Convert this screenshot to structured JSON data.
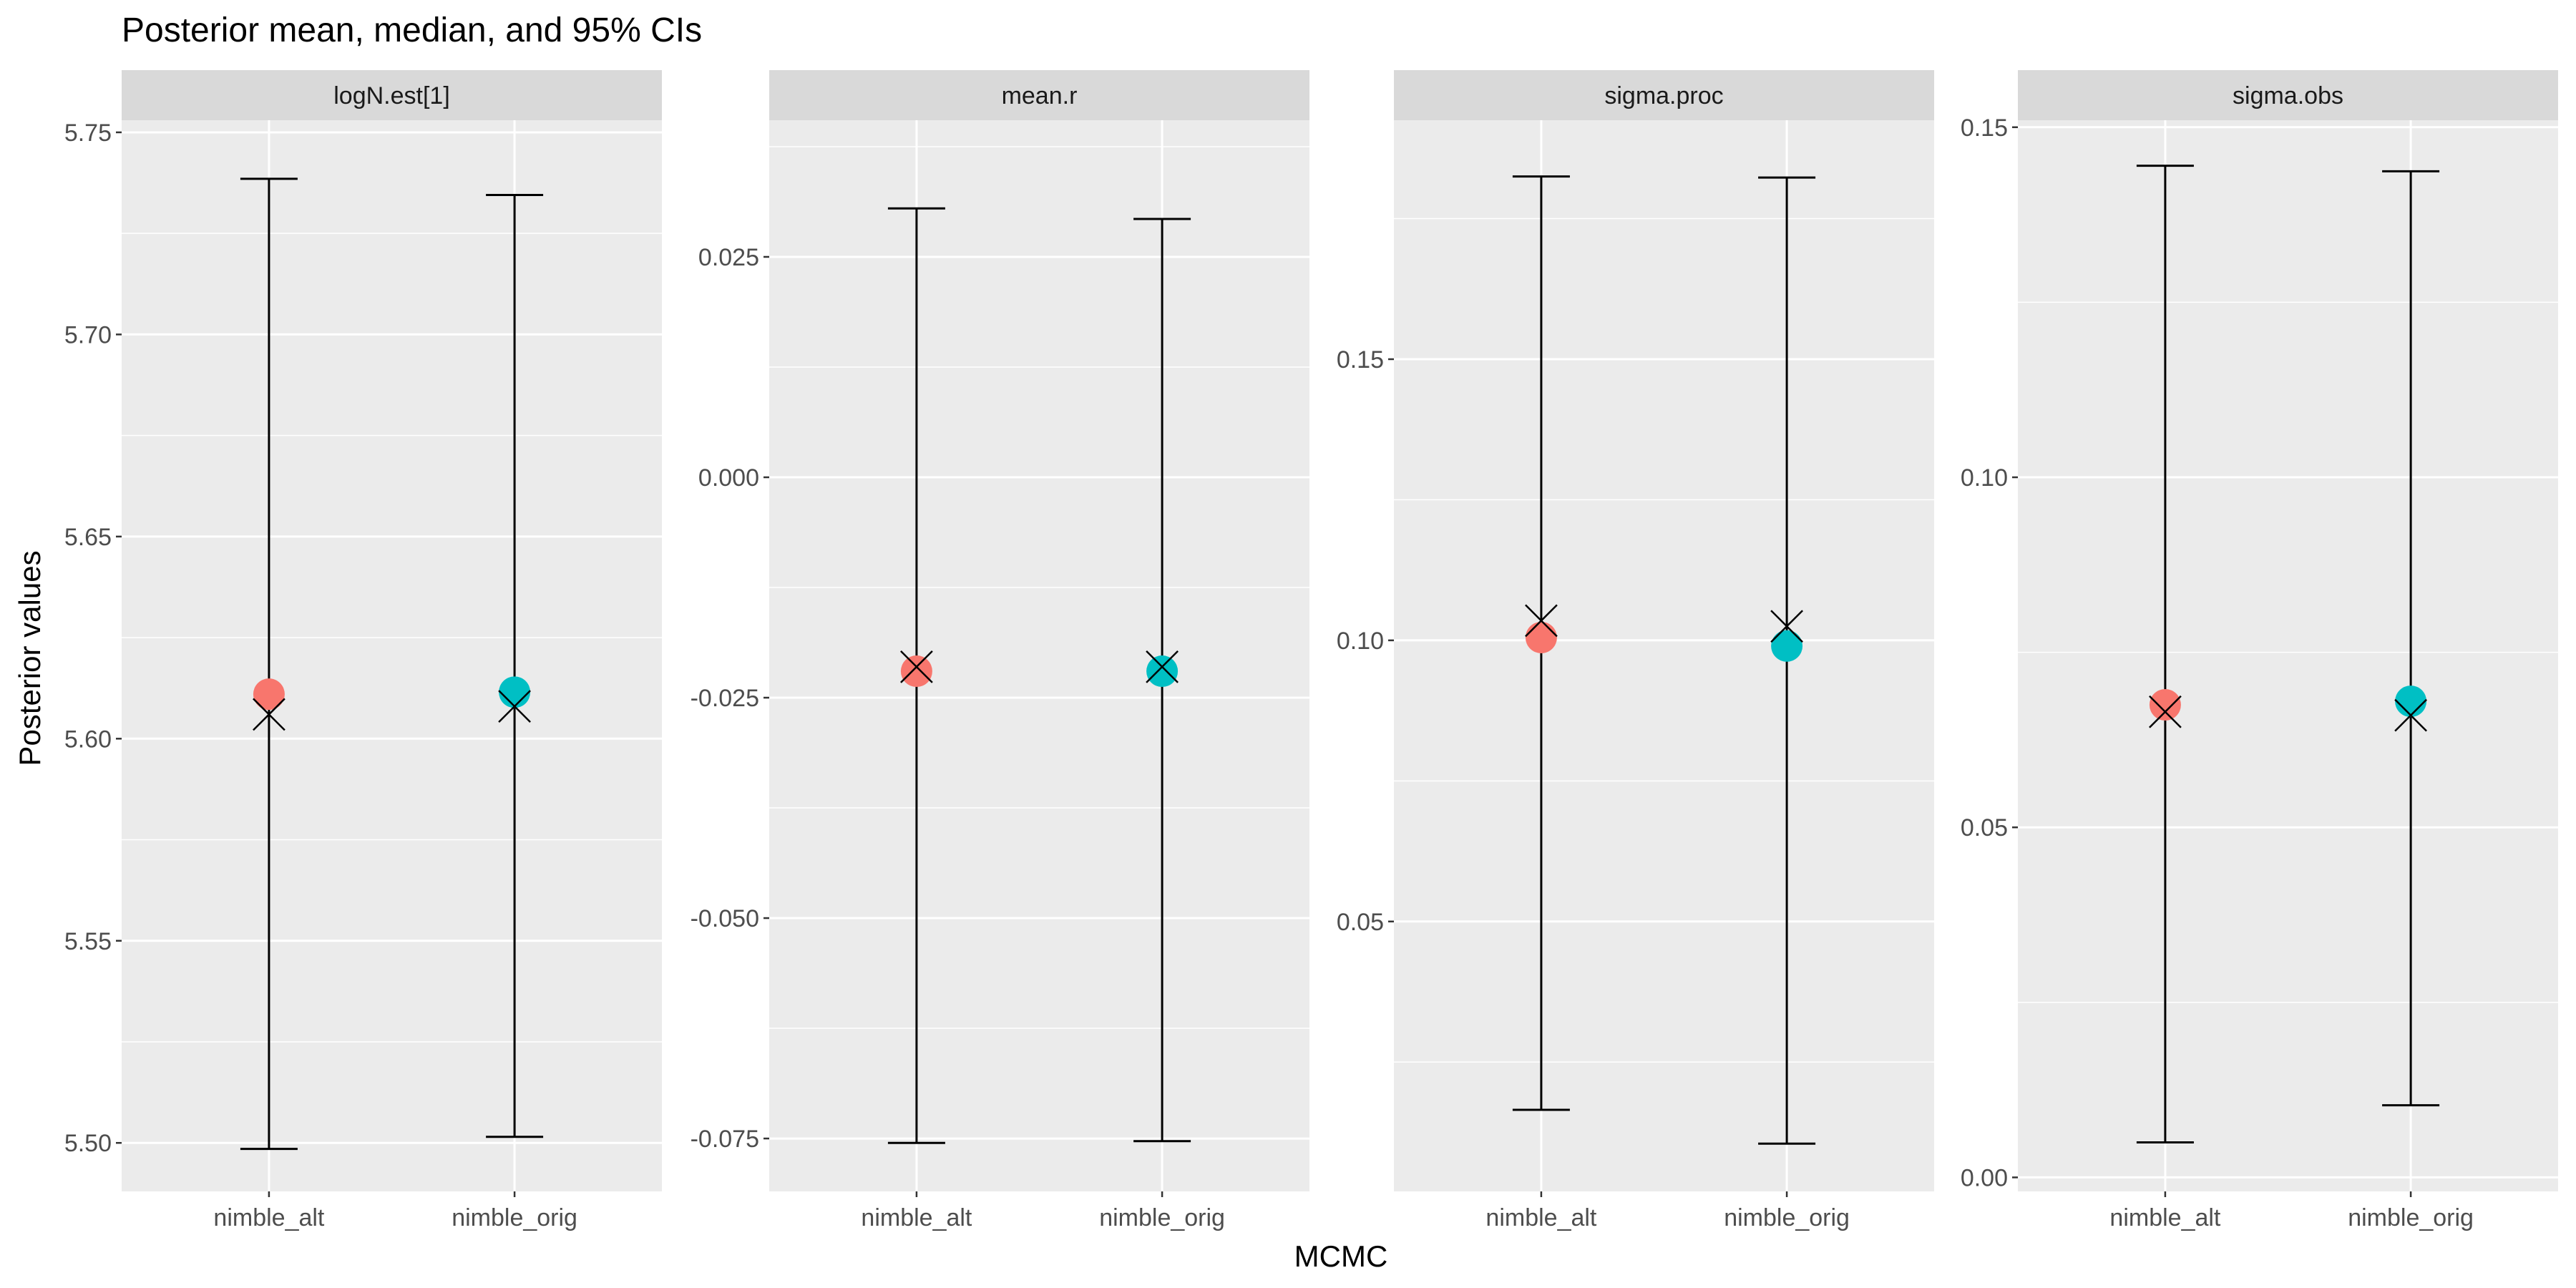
{
  "title": "Posterior mean, median, and 95% CIs",
  "xlabel": "MCMC",
  "ylabel": "Posterior values",
  "colors": {
    "nimble_alt": "#F8766D",
    "nimble_orig": "#00BFC4",
    "panel_bg": "#EBEBEB",
    "strip_bg": "#D9D9D9",
    "grid": "#FFFFFF",
    "text": "#1A1A1A",
    "tick_text": "#4D4D4D"
  },
  "chart_data": [
    {
      "type": "errorbar",
      "panel": "logN.est[1]",
      "categories": [
        "nimble_alt",
        "nimble_orig"
      ],
      "ylim": [
        5.488,
        5.753
      ],
      "yticks": [
        5.5,
        5.55,
        5.6,
        5.65,
        5.7,
        5.75
      ],
      "ytick_labels": [
        "5.50",
        "5.55",
        "5.60",
        "5.65",
        "5.70",
        "5.75"
      ],
      "series": [
        {
          "name": "nimble_alt",
          "mean": 5.611,
          "median": 5.606,
          "lower": 5.4985,
          "upper": 5.7385
        },
        {
          "name": "nimble_orig",
          "mean": 5.6115,
          "median": 5.608,
          "lower": 5.5015,
          "upper": 5.7345
        }
      ]
    },
    {
      "type": "errorbar",
      "panel": "mean.r",
      "categories": [
        "nimble_alt",
        "nimble_orig"
      ],
      "ylim": [
        -0.081,
        0.0405
      ],
      "yticks": [
        -0.075,
        -0.05,
        -0.025,
        0.0,
        0.025
      ],
      "ytick_labels": [
        "-0.075",
        "-0.050",
        "-0.025",
        "0.000",
        "0.025"
      ],
      "series": [
        {
          "name": "nimble_alt",
          "mean": -0.022,
          "median": -0.0215,
          "lower": -0.0755,
          "upper": 0.0305
        },
        {
          "name": "nimble_orig",
          "mean": -0.022,
          "median": -0.0215,
          "lower": -0.0753,
          "upper": 0.0293
        }
      ]
    },
    {
      "type": "errorbar",
      "panel": "sigma.proc",
      "categories": [
        "nimble_alt",
        "nimble_orig"
      ],
      "ylim": [
        0.002,
        0.1925
      ],
      "yticks": [
        0.05,
        0.1,
        0.15
      ],
      "ytick_labels": [
        "0.05",
        "0.10",
        "0.15"
      ],
      "series": [
        {
          "name": "nimble_alt",
          "mean": 0.1005,
          "median": 0.1035,
          "lower": 0.0165,
          "upper": 0.1825
        },
        {
          "name": "nimble_orig",
          "mean": 0.099,
          "median": 0.1025,
          "lower": 0.0105,
          "upper": 0.1823
        }
      ]
    },
    {
      "type": "errorbar",
      "panel": "sigma.obs",
      "categories": [
        "nimble_alt",
        "nimble_orig"
      ],
      "ylim": [
        -0.002,
        0.151
      ],
      "yticks": [
        0.0,
        0.05,
        0.1,
        0.15
      ],
      "ytick_labels": [
        "0.00",
        "0.05",
        "0.10",
        "0.15"
      ],
      "series": [
        {
          "name": "nimble_alt",
          "mean": 0.0675,
          "median": 0.0665,
          "lower": 0.005,
          "upper": 0.1445
        },
        {
          "name": "nimble_orig",
          "mean": 0.068,
          "median": 0.066,
          "lower": 0.0103,
          "upper": 0.1437
        }
      ]
    }
  ]
}
